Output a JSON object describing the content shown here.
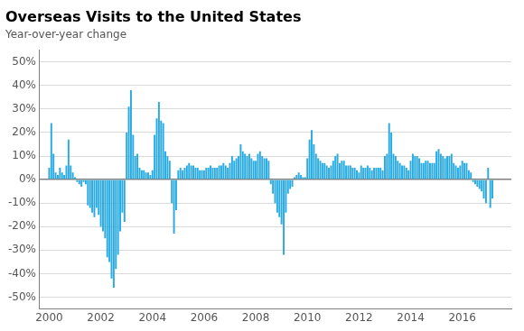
{
  "chart_data": {
    "type": "bar",
    "title": "Overseas Visits to the United States",
    "subtitle": "Year-over-year change",
    "color": "#29ABE2",
    "grid": true,
    "xlim": [
      1999.6,
      2017.9
    ],
    "xticks": [
      2000,
      2002,
      2004,
      2006,
      2008,
      2010,
      2012,
      2014,
      2016
    ],
    "ylim": [
      -0.55,
      0.55
    ],
    "yticks": [
      {
        "value": -0.5,
        "label": "-50%"
      },
      {
        "value": -0.4,
        "label": "-40%"
      },
      {
        "value": -0.3,
        "label": "-30%"
      },
      {
        "value": -0.2,
        "label": "-20%"
      },
      {
        "value": -0.1,
        "label": "-10%"
      },
      {
        "value": 0.0,
        "label": "0%"
      },
      {
        "value": 0.1,
        "label": "10%"
      },
      {
        "value": 0.2,
        "label": "20%"
      },
      {
        "value": 0.3,
        "label": "30%"
      },
      {
        "value": 0.4,
        "label": "40%"
      },
      {
        "value": 0.5,
        "label": "50%"
      }
    ],
    "x": [
      2000,
      2000.083333,
      2000.166667,
      2000.25,
      2000.333333,
      2000.416667,
      2000.5,
      2000.583333,
      2000.666667,
      2000.75,
      2000.833333,
      2000.916667,
      2001,
      2001.083333,
      2001.166667,
      2001.25,
      2001.333333,
      2001.416667,
      2001.5,
      2001.583333,
      2001.666667,
      2001.75,
      2001.833333,
      2001.916667,
      2002,
      2002.083333,
      2002.166667,
      2002.25,
      2002.333333,
      2002.416667,
      2002.5,
      2002.583333,
      2002.666667,
      2002.75,
      2002.833333,
      2002.916667,
      2003,
      2003.083333,
      2003.166667,
      2003.25,
      2003.333333,
      2003.416667,
      2003.5,
      2003.583333,
      2003.666667,
      2003.75,
      2003.833333,
      2003.916667,
      2004,
      2004.083333,
      2004.166667,
      2004.25,
      2004.333333,
      2004.416667,
      2004.5,
      2004.583333,
      2004.666667,
      2004.75,
      2004.833333,
      2004.916667,
      2005,
      2005.083333,
      2005.166667,
      2005.25,
      2005.333333,
      2005.416667,
      2005.5,
      2005.583333,
      2005.666667,
      2005.75,
      2005.833333,
      2005.916667,
      2006,
      2006.083333,
      2006.166667,
      2006.25,
      2006.333333,
      2006.416667,
      2006.5,
      2006.583333,
      2006.666667,
      2006.75,
      2006.833333,
      2006.916667,
      2007,
      2007.083333,
      2007.166667,
      2007.25,
      2007.333333,
      2007.416667,
      2007.5,
      2007.583333,
      2007.666667,
      2007.75,
      2007.833333,
      2007.916667,
      2008,
      2008.083333,
      2008.166667,
      2008.25,
      2008.333333,
      2008.416667,
      2008.5,
      2008.583333,
      2008.666667,
      2008.75,
      2008.833333,
      2008.916667,
      2009,
      2009.083333,
      2009.166667,
      2009.25,
      2009.333333,
      2009.416667,
      2009.5,
      2009.583333,
      2009.666667,
      2009.75,
      2009.833333,
      2009.916667,
      2010,
      2010.083333,
      2010.166667,
      2010.25,
      2010.333333,
      2010.416667,
      2010.5,
      2010.583333,
      2010.666667,
      2010.75,
      2010.833333,
      2010.916667,
      2011,
      2011.083333,
      2011.166667,
      2011.25,
      2011.333333,
      2011.416667,
      2011.5,
      2011.583333,
      2011.666667,
      2011.75,
      2011.833333,
      2011.916667,
      2012,
      2012.083333,
      2012.166667,
      2012.25,
      2012.333333,
      2012.416667,
      2012.5,
      2012.583333,
      2012.666667,
      2012.75,
      2012.833333,
      2012.916667,
      2013,
      2013.083333,
      2013.166667,
      2013.25,
      2013.333333,
      2013.416667,
      2013.5,
      2013.583333,
      2013.666667,
      2013.75,
      2013.833333,
      2013.916667,
      2014,
      2014.083333,
      2014.166667,
      2014.25,
      2014.333333,
      2014.416667,
      2014.5,
      2014.583333,
      2014.666667,
      2014.75,
      2014.833333,
      2014.916667,
      2015,
      2015.083333,
      2015.166667,
      2015.25,
      2015.333333,
      2015.416667,
      2015.5,
      2015.583333,
      2015.666667,
      2015.75,
      2015.833333,
      2015.916667,
      2016,
      2016.083333,
      2016.166667,
      2016.25,
      2016.333333,
      2016.416667,
      2016.5,
      2016.583333,
      2016.666667,
      2016.75,
      2016.833333,
      2016.916667,
      2017,
      2017.083333,
      2017.166667
    ],
    "values": [
      0.05,
      0.24,
      0.11,
      0.03,
      0.02,
      0.05,
      0.03,
      0.02,
      0.06,
      0.17,
      0.06,
      0.03,
      0.01,
      -0.01,
      -0.02,
      -0.03,
      -0.01,
      -0.02,
      -0.11,
      -0.12,
      -0.14,
      -0.16,
      -0.12,
      -0.15,
      -0.2,
      -0.22,
      -0.25,
      -0.33,
      -0.35,
      -0.42,
      -0.46,
      -0.38,
      -0.32,
      -0.22,
      -0.14,
      -0.18,
      0.2,
      0.31,
      0.38,
      0.19,
      0.1,
      0.11,
      0.05,
      0.04,
      0.04,
      0.03,
      0.03,
      0.02,
      0.04,
      0.19,
      0.26,
      0.33,
      0.25,
      0.24,
      0.12,
      0.1,
      0.08,
      -0.1,
      -0.23,
      -0.13,
      0.04,
      0.05,
      0.04,
      0.05,
      0.06,
      0.07,
      0.06,
      0.06,
      0.05,
      0.05,
      0.04,
      0.04,
      0.04,
      0.05,
      0.05,
      0.06,
      0.05,
      0.05,
      0.05,
      0.06,
      0.06,
      0.07,
      0.06,
      0.05,
      0.07,
      0.1,
      0.08,
      0.09,
      0.1,
      0.15,
      0.12,
      0.11,
      0.1,
      0.11,
      0.09,
      0.08,
      0.08,
      0.11,
      0.12,
      0.1,
      0.09,
      0.09,
      0.08,
      -0.02,
      -0.06,
      -0.1,
      -0.14,
      -0.16,
      -0.19,
      -0.32,
      -0.14,
      -0.06,
      -0.04,
      -0.03,
      0.01,
      0.02,
      0.03,
      0.02,
      0.01,
      0.01,
      0.09,
      0.17,
      0.21,
      0.15,
      0.11,
      0.09,
      0.08,
      0.07,
      0.07,
      0.06,
      0.05,
      0.06,
      0.08,
      0.1,
      0.11,
      0.07,
      0.08,
      0.08,
      0.06,
      0.06,
      0.06,
      0.05,
      0.05,
      0.04,
      0.03,
      0.06,
      0.05,
      0.05,
      0.06,
      0.05,
      0.04,
      0.05,
      0.05,
      0.05,
      0.05,
      0.04,
      0.1,
      0.11,
      0.24,
      0.2,
      0.11,
      0.1,
      0.08,
      0.07,
      0.06,
      0.06,
      0.05,
      0.04,
      0.08,
      0.11,
      0.1,
      0.1,
      0.09,
      0.07,
      0.07,
      0.08,
      0.08,
      0.07,
      0.07,
      0.07,
      0.12,
      0.13,
      0.11,
      0.1,
      0.09,
      0.1,
      0.1,
      0.11,
      0.07,
      0.06,
      0.05,
      0.06,
      0.08,
      0.07,
      0.07,
      0.04,
      0.03,
      -0.01,
      -0.02,
      -0.03,
      -0.04,
      -0.05,
      -0.08,
      -0.1,
      0.05,
      -0.12,
      -0.08
    ]
  }
}
